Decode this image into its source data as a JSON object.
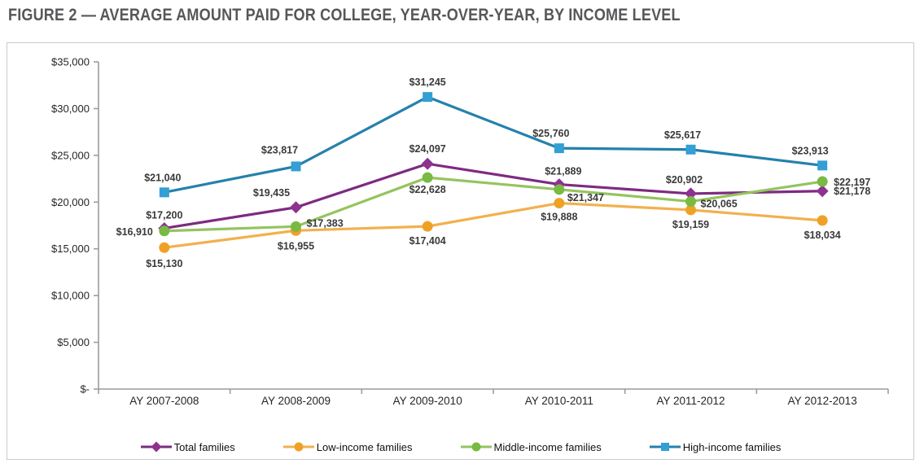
{
  "title": "FIGURE 2 — AVERAGE AMOUNT PAID FOR COLLEGE, YEAR-OVER-YEAR, BY INCOME LEVEL",
  "chart_data": {
    "type": "line",
    "categories": [
      "AY 2007-2008",
      "AY 2008-2009",
      "AY 2009-2010",
      "AY 2010-2011",
      "AY 2011-2012",
      "AY 2012-2013"
    ],
    "xlabel": "",
    "ylabel": "",
    "ylim": [
      0,
      35000
    ],
    "ytick_interval": 5000,
    "ytick_labels": [
      "$-",
      "$5,000",
      "$10,000",
      "$15,000",
      "$20,000",
      "$25,000",
      "$30,000",
      "$35,000"
    ],
    "grid": false,
    "legend_position": "bottom",
    "series": [
      {
        "name": "Total families",
        "marker": "diamond",
        "line_color": "#7E2A82",
        "marker_color": "#8E3190",
        "values": [
          17200,
          19435,
          24097,
          21889,
          20902,
          21178
        ],
        "labels": [
          "$17,200",
          "$19,435",
          "$24,097",
          "$21,889",
          "$20,902",
          "$21,178"
        ],
        "label_offsets": [
          [
            0,
            -12,
            "middle"
          ],
          [
            -30,
            -14,
            "middle"
          ],
          [
            0,
            -14,
            "middle"
          ],
          [
            5,
            -12,
            "middle"
          ],
          [
            -8,
            -13,
            "middle"
          ],
          [
            14,
            4,
            "start"
          ]
        ]
      },
      {
        "name": "Low-income families",
        "marker": "circle",
        "line_color": "#F2B04E",
        "marker_color": "#EFA125",
        "values": [
          15130,
          16955,
          17404,
          19888,
          19159,
          18034
        ],
        "labels": [
          "$15,130",
          "$16,955",
          "$17,404",
          "$19,888",
          "$19,159",
          "$18,034"
        ],
        "label_offsets": [
          [
            0,
            24,
            "middle"
          ],
          [
            0,
            23,
            "middle"
          ],
          [
            0,
            22,
            "middle"
          ],
          [
            0,
            21,
            "middle"
          ],
          [
            0,
            22,
            "middle"
          ],
          [
            0,
            22,
            "middle"
          ]
        ]
      },
      {
        "name": "Middle-income families",
        "marker": "circle",
        "line_color": "#94C45F",
        "marker_color": "#78BA43",
        "values": [
          16910,
          17383,
          22628,
          21347,
          20065,
          22197
        ],
        "labels": [
          "$16,910",
          "$17,383",
          "$22,628",
          "$21,347",
          "$20,065",
          "$22,197"
        ],
        "label_offsets": [
          [
            -14,
            5,
            "end"
          ],
          [
            13,
            0,
            "start"
          ],
          [
            0,
            19,
            "middle"
          ],
          [
            10,
            14,
            "start"
          ],
          [
            12,
            7,
            "start"
          ],
          [
            14,
            5,
            "start"
          ]
        ]
      },
      {
        "name": "High-income families",
        "marker": "square",
        "line_color": "#2581AC",
        "marker_color": "#339FD4",
        "values": [
          21040,
          23817,
          31245,
          25760,
          25617,
          23913
        ],
        "labels": [
          "$21,040",
          "$23,817",
          "$31,245",
          "$25,760",
          "$25,617",
          "$23,913"
        ],
        "label_offsets": [
          [
            -2,
            -14,
            "middle"
          ],
          [
            -20,
            -16,
            "middle"
          ],
          [
            0,
            -14,
            "middle"
          ],
          [
            -10,
            -14,
            "middle"
          ],
          [
            -10,
            -14,
            "middle"
          ],
          [
            -15,
            -14,
            "middle"
          ]
        ]
      }
    ]
  },
  "style": {
    "axis_color": "#9C9C9C",
    "data_label_color": "#3A3A3A",
    "axis_label_color": "#262626",
    "title_color": "#56575A",
    "border_color": "#C9CACB",
    "legend_text_color": "#111111"
  }
}
